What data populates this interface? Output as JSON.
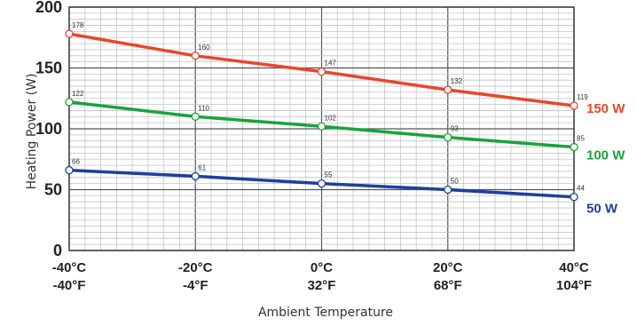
{
  "chart_data": {
    "type": "line",
    "title": "",
    "xlabel": "Ambient Temperature",
    "ylabel": "Heating Power (W)",
    "ylim": [
      0,
      200
    ],
    "xlim": [
      -40,
      40
    ],
    "grid": true,
    "y_ticks": [
      0,
      50,
      100,
      150,
      200
    ],
    "x_ticks": [
      {
        "value": -40,
        "celsius": "-40°C",
        "fahrenheit": "-40°F"
      },
      {
        "value": -20,
        "celsius": "-20°C",
        "fahrenheit": "-4°F"
      },
      {
        "value": 0,
        "celsius": "0°C",
        "fahrenheit": "32°F"
      },
      {
        "value": 20,
        "celsius": "20°C",
        "fahrenheit": "68°F"
      },
      {
        "value": 40,
        "celsius": "40°C",
        "fahrenheit": "104°F"
      }
    ],
    "x": [
      -40,
      -20,
      0,
      20,
      40
    ],
    "series": [
      {
        "name": "150 W",
        "color": "#e8472a",
        "values": [
          178,
          160,
          147,
          132,
          119
        ]
      },
      {
        "name": "100 W",
        "color": "#1aa33a",
        "values": [
          122,
          110,
          102,
          93,
          85
        ]
      },
      {
        "name": "50 W",
        "color": "#1f3f9e",
        "values": [
          66,
          61,
          55,
          50,
          44
        ]
      }
    ]
  }
}
